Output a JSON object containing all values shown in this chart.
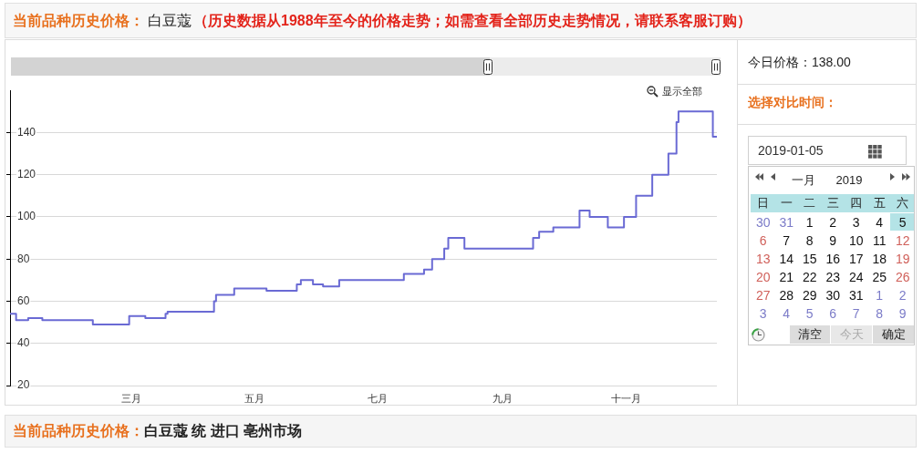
{
  "chart_data": {
    "type": "step",
    "title": "白豆蔻",
    "subtitle": "（历史数据从1988年至今的价格走势；如需查看全部历史走势情况，请联系客服订购）",
    "annotations": [
      "当前品种历史价格：",
      "今日价格：138.00",
      "选择对比时间：",
      "2019-01-05",
      "一月",
      "2019",
      "日 一 二 三 四 五 六",
      "30 31 1 2 3 4 5",
      "6 7 8 9 10 11 12",
      "13 14 15 16 17 18 19",
      "20 21 22 23 24 25 26",
      "27 28 29 30 31 1 2",
      "3 4 5 6 7 8 9",
      "清空",
      "今天",
      "确定",
      "显示全部",
      "当前品种历史价格：",
      "白豆蔻 统 进口 亳州市场"
    ],
    "categories": [
      null,
      null,
      null,
      null,
      null,
      null,
      null,
      null,
      null,
      null,
      null,
      null,
      null,
      null,
      null,
      null,
      null,
      null,
      null,
      null,
      null,
      null,
      null,
      null,
      null,
      null,
      null,
      null,
      null,
      null,
      null,
      null,
      null,
      null,
      null,
      null,
      null,
      null,
      null,
      null,
      null,
      null,
      null,
      null,
      null,
      null,
      null,
      null,
      null,
      null,
      null,
      null,
      null,
      null,
      null,
      null,
      null,
      null,
      null,
      null,
      "三月",
      null,
      null,
      null,
      null,
      null,
      null,
      null,
      null,
      null,
      null,
      null,
      null,
      null,
      null,
      null,
      null,
      null,
      null,
      null,
      null,
      null,
      null,
      null,
      null,
      null,
      null,
      null,
      null,
      null,
      null,
      null,
      null,
      null,
      null,
      null,
      null,
      null,
      null,
      null,
      null,
      null,
      null,
      null,
      null,
      null,
      null,
      null,
      null,
      null,
      null,
      null,
      null,
      null,
      null,
      null,
      null,
      null,
      null,
      null,
      null,
      "五月",
      null,
      null,
      null,
      null,
      null,
      null,
      null,
      null,
      null,
      null,
      null,
      null,
      null,
      null,
      null,
      null,
      null,
      null,
      null,
      null,
      null,
      null,
      null,
      null,
      null,
      null,
      null,
      null,
      null,
      null,
      null,
      null,
      null,
      null,
      null,
      null,
      null,
      null,
      null,
      null,
      null,
      null,
      null,
      null,
      null,
      null,
      null,
      null,
      null,
      null,
      null,
      null,
      null,
      null,
      null,
      null,
      null,
      null,
      null,
      null,
      "七月",
      null,
      null,
      null,
      null,
      null,
      null,
      null,
      null,
      null,
      null,
      null,
      null,
      null,
      null,
      null,
      null,
      null,
      null,
      null,
      null,
      null,
      null,
      null,
      null,
      null,
      null,
      null,
      null,
      null,
      null,
      null,
      null,
      null,
      null,
      null,
      null,
      null,
      null,
      null,
      null,
      null,
      null,
      null,
      null,
      null,
      null,
      null,
      null,
      null,
      null,
      null,
      null,
      null,
      null,
      null,
      null,
      null,
      null,
      null,
      null,
      null,
      "九月",
      null,
      null,
      null,
      null,
      null,
      null,
      null,
      null,
      null,
      null,
      null,
      null,
      null,
      null,
      null,
      null,
      null,
      null,
      null,
      null,
      null,
      null,
      null,
      null,
      null,
      null,
      null,
      null,
      null,
      null,
      null,
      null,
      null,
      null,
      null,
      null,
      null,
      null,
      null,
      null,
      null,
      null,
      null,
      null,
      null,
      null,
      null,
      null,
      null,
      null,
      null,
      null,
      null,
      null,
      null,
      null,
      null,
      null,
      null,
      null,
      "十一月",
      null,
      null,
      null,
      null,
      null,
      null,
      null,
      null,
      null,
      null,
      null,
      null,
      null,
      null,
      null,
      null,
      null,
      null,
      null,
      null,
      null,
      null,
      null,
      null,
      null,
      null,
      null,
      null,
      null,
      null,
      null,
      null,
      null,
      null,
      null,
      null,
      null,
      null,
      null,
      null,
      null,
      null,
      null,
      null,
      null
    ],
    "values": [
      54,
      54,
      54,
      51,
      51,
      51,
      51,
      51,
      51,
      52,
      52,
      52,
      52,
      52,
      52,
      52,
      51,
      51,
      51,
      51,
      51,
      51,
      51,
      51,
      51,
      51,
      51,
      51,
      51,
      51,
      51,
      51,
      51,
      51,
      51,
      51,
      51,
      51,
      51,
      51,
      51,
      49,
      49,
      49,
      49,
      49,
      49,
      49,
      49,
      49,
      49,
      49,
      49,
      49,
      49,
      49,
      49,
      49,
      49,
      53,
      53,
      53,
      53,
      53,
      53,
      53,
      53,
      52,
      52,
      52,
      52,
      52,
      52,
      52,
      52,
      52,
      52,
      54,
      55,
      55,
      55,
      55,
      55,
      55,
      55,
      55,
      55,
      55,
      55,
      55,
      55,
      55,
      55,
      55,
      55,
      55,
      55,
      55,
      55,
      55,
      55,
      60,
      63,
      63,
      63,
      63,
      63,
      63,
      63,
      63,
      63,
      66,
      66,
      66,
      66,
      66,
      66,
      66,
      66,
      66,
      66,
      66,
      66,
      66,
      66,
      66,
      66,
      65,
      65,
      65,
      65,
      65,
      65,
      65,
      65,
      65,
      65,
      65,
      65,
      65,
      65,
      65,
      68,
      68,
      70,
      70,
      70,
      70,
      70,
      70,
      68,
      68,
      68,
      68,
      68,
      67,
      67,
      67,
      67,
      67,
      67,
      67,
      67,
      70,
      70,
      70,
      70,
      70,
      70,
      70,
      70,
      70,
      70,
      70,
      70,
      70,
      70,
      70,
      70,
      70,
      70,
      70,
      70,
      70,
      70,
      70,
      70,
      70,
      70,
      70,
      70,
      70,
      70,
      70,
      70,
      73,
      73,
      73,
      73,
      73,
      73,
      73,
      73,
      73,
      73,
      75,
      75,
      75,
      75,
      80,
      80,
      80,
      80,
      80,
      80,
      85,
      85,
      90,
      90,
      90,
      90,
      90,
      90,
      90,
      90,
      85,
      85,
      85,
      85,
      85,
      85,
      85,
      85,
      85,
      85,
      85,
      85,
      85,
      85,
      85,
      85,
      85,
      85,
      85,
      85,
      85,
      85,
      85,
      85,
      85,
      85,
      85,
      85,
      85,
      85,
      85,
      85,
      85,
      85,
      90,
      90,
      90,
      93,
      93,
      93,
      93,
      93,
      93,
      93,
      95,
      95,
      95,
      95,
      95,
      95,
      95,
      95,
      95,
      95,
      95,
      95,
      95,
      103,
      103,
      103,
      103,
      103,
      100,
      100,
      100,
      100,
      100,
      100,
      100,
      100,
      100,
      95,
      95,
      95,
      95,
      95,
      95,
      95,
      95,
      100,
      100,
      100,
      100,
      100,
      100,
      110,
      110,
      110,
      110,
      110,
      110,
      110,
      110,
      120,
      120,
      120,
      120,
      120,
      120,
      120,
      120,
      130,
      130,
      130,
      130,
      145,
      150,
      150,
      150,
      150,
      150,
      150,
      150,
      150,
      150,
      150,
      150,
      150,
      150,
      150,
      150,
      150,
      150,
      138,
      138,
      138
    ],
    "color": "#6a6ad4",
    "ylim": [
      20,
      160
    ],
    "yticks": [
      20,
      40,
      60,
      80,
      100,
      120,
      140
    ],
    "grid": "y",
    "marker": "none"
  }
}
